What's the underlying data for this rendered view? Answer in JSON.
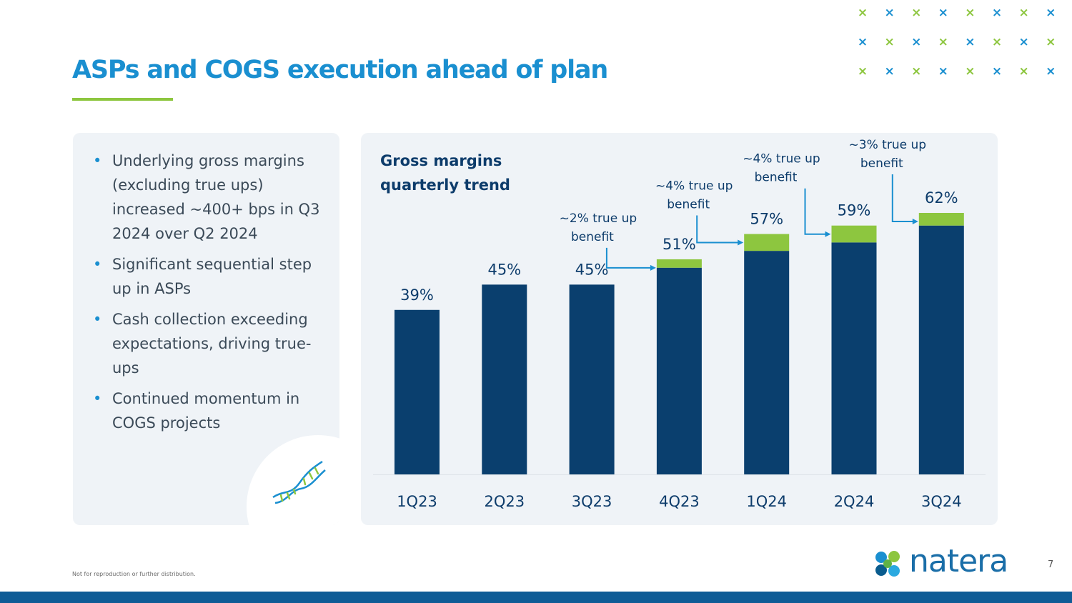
{
  "slide": {
    "title": "ASPs and COGS execution ahead of plan",
    "bullets": [
      "Underlying gross margins (excluding true ups) increased ~400+ bps in Q3 2024 over Q2 2024",
      "Significant sequential step up in ASPs",
      "Cash collection exceeding expectations, driving true-ups",
      "Continued momentum in COGS projects"
    ],
    "disclaimer": "Not for reproduction or further distribution.",
    "logo_text": "natera",
    "page_number": "7"
  },
  "chart_data": {
    "type": "bar",
    "stacked": true,
    "title": "Gross margins quarterly trend",
    "categories": [
      "1Q23",
      "2Q23",
      "3Q23",
      "4Q23",
      "1Q24",
      "2Q24",
      "3Q24"
    ],
    "series": [
      {
        "color": "#0a3f6e",
        "values": [
          39,
          45,
          45,
          49,
          53,
          55,
          59
        ]
      },
      {
        "color": "#8dc63f",
        "values": [
          0,
          0,
          0,
          2,
          4,
          4,
          3
        ]
      }
    ],
    "totals": [
      39,
      45,
      45,
      51,
      57,
      59,
      62
    ],
    "data_labels": [
      "39%",
      "45%",
      "45%",
      "51%",
      "57%",
      "59%",
      "62%"
    ],
    "annotations": [
      {
        "category": "4Q23",
        "text": "~2% true up benefit"
      },
      {
        "category": "1Q24",
        "text": "~4% true up benefit"
      },
      {
        "category": "2Q24",
        "text": "~4% true up benefit"
      },
      {
        "category": "3Q24",
        "text": "~3% true up benefit"
      }
    ],
    "ylim": [
      0,
      62
    ],
    "grid": false,
    "legend": "none"
  },
  "colors": {
    "title": "#1a8fd0",
    "accent_green": "#8dc63f",
    "dark_blue": "#0a3f6e",
    "annotation_arrow": "#1a8fd0",
    "bottom_bar": "#0f5c96"
  },
  "icons": {
    "decor": "dna-helix-icon",
    "brand": "natera-logo-icon",
    "pattern": "x-pattern-icon"
  }
}
